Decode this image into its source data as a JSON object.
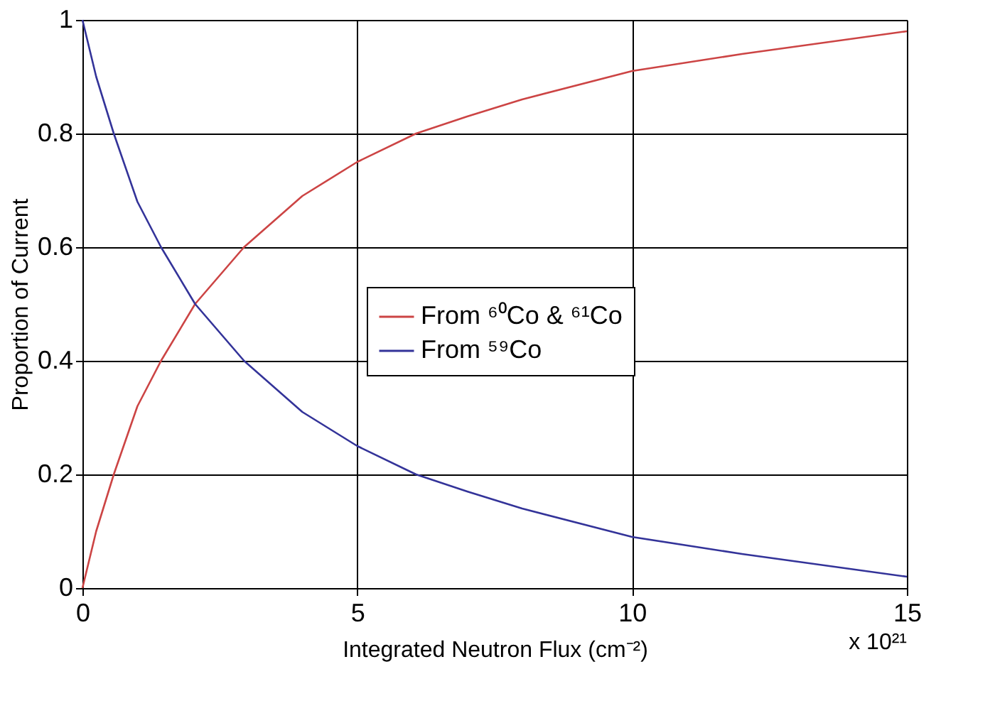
{
  "chart_data": {
    "type": "line",
    "xlabel": "Integrated Neutron Flux (cm⁻²)",
    "ylabel": "Proportion of Current",
    "annotations": [
      "x 10²¹"
    ],
    "xlim": [
      0,
      15
    ],
    "xticks": [
      0,
      5,
      10,
      15
    ],
    "ylim": [
      0,
      1
    ],
    "yticks": [
      0,
      0.2,
      0.4,
      0.6,
      0.8,
      1
    ],
    "grid": true,
    "legend": "right",
    "marker": "none",
    "line_style": "solid",
    "series": [
      {
        "name": "From ⁶⁰Co & ⁶¹Co",
        "color": "#cc4444",
        "x": [
          0,
          0.25,
          0.57,
          1,
          1.43,
          2.05,
          2.94,
          4,
          5,
          6.07,
          7,
          8,
          10,
          12,
          15
        ],
        "values": [
          0,
          0.1,
          0.2,
          0.32,
          0.4,
          0.5,
          0.6,
          0.69,
          0.75,
          0.8,
          0.83,
          0.86,
          0.91,
          0.94,
          0.98
        ]
      },
      {
        "name": "From ⁵⁹Co",
        "color": "#333399",
        "x": [
          0,
          0.25,
          0.57,
          1,
          1.43,
          2.05,
          2.94,
          4,
          5,
          6.07,
          7,
          8,
          10,
          12,
          15
        ],
        "values": [
          1,
          0.9,
          0.8,
          0.68,
          0.6,
          0.5,
          0.4,
          0.31,
          0.25,
          0.2,
          0.17,
          0.14,
          0.09,
          0.06,
          0.02
        ]
      }
    ]
  }
}
